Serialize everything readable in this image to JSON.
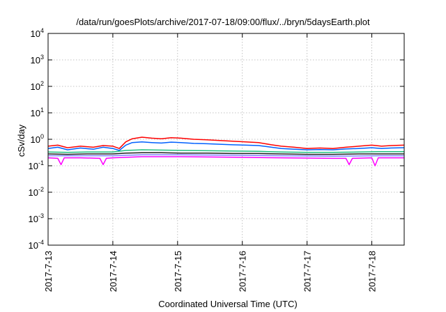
{
  "chart_data": {
    "type": "line",
    "title": "/data/run/goesPlots/archive/2017-07-18/09:00/flux/../bryn/5daysEarth.plot",
    "xlabel": "Coordinated Universal Time (UTC)",
    "ylabel": "cSv/day",
    "yscale": "log",
    "ylim": [
      0.0001,
      10000
    ],
    "xlim": [
      0.0,
      5.5
    ],
    "grid": true,
    "yticks": [
      {
        "base": "10",
        "exp": "-4",
        "value": 0.0001
      },
      {
        "base": "10",
        "exp": "-3",
        "value": 0.001
      },
      {
        "base": "10",
        "exp": "-2",
        "value": 0.01
      },
      {
        "base": "10",
        "exp": "-1",
        "value": 0.1
      },
      {
        "base": "10",
        "exp": "0",
        "value": 1
      },
      {
        "base": "10",
        "exp": "1",
        "value": 10
      },
      {
        "base": "10",
        "exp": "2",
        "value": 100
      },
      {
        "base": "10",
        "exp": "3",
        "value": 1000
      },
      {
        "base": "10",
        "exp": "4",
        "value": 10000
      }
    ],
    "xticks": [
      {
        "label": "2017-7-13",
        "value": 0
      },
      {
        "label": "2017-7-14",
        "value": 1
      },
      {
        "label": "2017-7-15",
        "value": 2
      },
      {
        "label": "2017-7-16",
        "value": 3
      },
      {
        "label": "2017-7-17",
        "value": 4
      },
      {
        "label": "2017-7-18",
        "value": 5
      }
    ],
    "series": [
      {
        "color": "#ff0000",
        "points": [
          [
            0,
            0.55
          ],
          [
            0.15,
            0.6
          ],
          [
            0.3,
            0.48
          ],
          [
            0.5,
            0.55
          ],
          [
            0.7,
            0.5
          ],
          [
            0.85,
            0.58
          ],
          [
            1.0,
            0.55
          ],
          [
            1.1,
            0.45
          ],
          [
            1.2,
            0.8
          ],
          [
            1.3,
            1.05
          ],
          [
            1.45,
            1.2
          ],
          [
            1.6,
            1.1
          ],
          [
            1.75,
            1.05
          ],
          [
            1.9,
            1.15
          ],
          [
            2.05,
            1.1
          ],
          [
            2.25,
            1.0
          ],
          [
            2.45,
            0.95
          ],
          [
            2.65,
            0.9
          ],
          [
            2.85,
            0.85
          ],
          [
            3.05,
            0.8
          ],
          [
            3.25,
            0.75
          ],
          [
            3.45,
            0.62
          ],
          [
            3.6,
            0.55
          ],
          [
            3.8,
            0.5
          ],
          [
            4.0,
            0.45
          ],
          [
            4.2,
            0.47
          ],
          [
            4.4,
            0.45
          ],
          [
            4.6,
            0.5
          ],
          [
            4.8,
            0.55
          ],
          [
            5.0,
            0.6
          ],
          [
            5.15,
            0.55
          ],
          [
            5.3,
            0.58
          ],
          [
            5.5,
            0.6
          ]
        ]
      },
      {
        "color": "#0060ff",
        "points": [
          [
            0,
            0.45
          ],
          [
            0.15,
            0.5
          ],
          [
            0.3,
            0.4
          ],
          [
            0.5,
            0.47
          ],
          [
            0.7,
            0.42
          ],
          [
            0.85,
            0.5
          ],
          [
            1.0,
            0.45
          ],
          [
            1.1,
            0.38
          ],
          [
            1.2,
            0.6
          ],
          [
            1.3,
            0.75
          ],
          [
            1.45,
            0.8
          ],
          [
            1.6,
            0.75
          ],
          [
            1.75,
            0.72
          ],
          [
            1.9,
            0.78
          ],
          [
            2.05,
            0.75
          ],
          [
            2.25,
            0.7
          ],
          [
            2.45,
            0.68
          ],
          [
            2.65,
            0.65
          ],
          [
            2.85,
            0.62
          ],
          [
            3.05,
            0.6
          ],
          [
            3.25,
            0.58
          ],
          [
            3.45,
            0.5
          ],
          [
            3.6,
            0.45
          ],
          [
            3.8,
            0.42
          ],
          [
            4.0,
            0.4
          ],
          [
            4.2,
            0.41
          ],
          [
            4.4,
            0.4
          ],
          [
            4.6,
            0.43
          ],
          [
            4.8,
            0.45
          ],
          [
            5.0,
            0.48
          ],
          [
            5.15,
            0.45
          ],
          [
            5.3,
            0.47
          ],
          [
            5.5,
            0.48
          ]
        ]
      },
      {
        "color": "#20c080",
        "points": [
          [
            0,
            0.33
          ],
          [
            0.3,
            0.32
          ],
          [
            0.6,
            0.33
          ],
          [
            1.0,
            0.33
          ],
          [
            1.2,
            0.38
          ],
          [
            1.45,
            0.4
          ],
          [
            1.75,
            0.39
          ],
          [
            2.05,
            0.38
          ],
          [
            2.45,
            0.37
          ],
          [
            2.85,
            0.36
          ],
          [
            3.25,
            0.35
          ],
          [
            3.6,
            0.33
          ],
          [
            4.0,
            0.32
          ],
          [
            4.4,
            0.32
          ],
          [
            4.8,
            0.33
          ],
          [
            5.1,
            0.34
          ],
          [
            5.5,
            0.34
          ]
        ]
      },
      {
        "color": "#202020",
        "points": [
          [
            0,
            0.28
          ],
          [
            0.3,
            0.27
          ],
          [
            0.6,
            0.28
          ],
          [
            1.0,
            0.28
          ],
          [
            1.2,
            0.3
          ],
          [
            1.45,
            0.31
          ],
          [
            1.75,
            0.31
          ],
          [
            2.05,
            0.3
          ],
          [
            2.45,
            0.3
          ],
          [
            2.85,
            0.29
          ],
          [
            3.25,
            0.29
          ],
          [
            3.6,
            0.28
          ],
          [
            4.0,
            0.27
          ],
          [
            4.4,
            0.27
          ],
          [
            4.8,
            0.28
          ],
          [
            5.1,
            0.28
          ],
          [
            5.5,
            0.28
          ]
        ]
      },
      {
        "color": "#8080ff",
        "points": [
          [
            0,
            0.24
          ],
          [
            0.3,
            0.24
          ],
          [
            0.6,
            0.24
          ],
          [
            1.0,
            0.24
          ],
          [
            1.45,
            0.26
          ],
          [
            2.05,
            0.26
          ],
          [
            2.85,
            0.25
          ],
          [
            3.6,
            0.24
          ],
          [
            4.4,
            0.23
          ],
          [
            5.1,
            0.24
          ],
          [
            5.5,
            0.24
          ]
        ]
      },
      {
        "color": "#ff00ff",
        "points": [
          [
            0,
            0.2
          ],
          [
            0.15,
            0.19
          ],
          [
            0.2,
            0.11
          ],
          [
            0.25,
            0.2
          ],
          [
            0.5,
            0.2
          ],
          [
            0.8,
            0.19
          ],
          [
            0.85,
            0.11
          ],
          [
            0.9,
            0.19
          ],
          [
            1.0,
            0.2
          ],
          [
            1.45,
            0.22
          ],
          [
            2.05,
            0.22
          ],
          [
            2.85,
            0.21
          ],
          [
            3.6,
            0.2
          ],
          [
            4.4,
            0.19
          ],
          [
            4.6,
            0.19
          ],
          [
            4.65,
            0.11
          ],
          [
            4.7,
            0.19
          ],
          [
            5.0,
            0.2
          ],
          [
            5.05,
            0.1
          ],
          [
            5.1,
            0.2
          ],
          [
            5.5,
            0.2
          ]
        ]
      }
    ]
  }
}
